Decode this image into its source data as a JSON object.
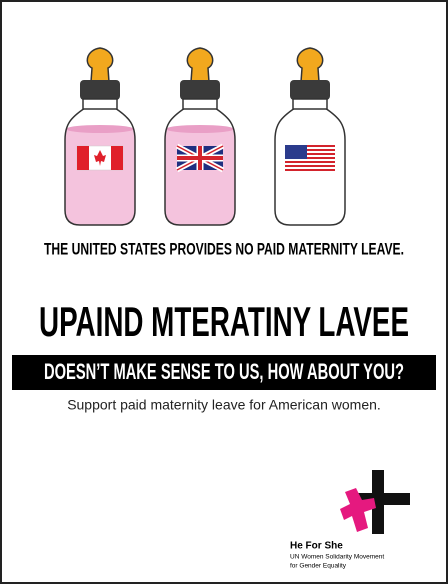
{
  "poster": {
    "statement": "THE UNITED STATES PROVIDES NO PAID MATERNITY LEAVE.",
    "headline": "UPAIND MTERATINY LAVEE",
    "banner": "DOESN’T MAKE SENSE TO US, HOW ABOUT YOU?",
    "tagline": "Support paid maternity leave for American women.",
    "logo": {
      "name": "He For She",
      "subtitle_lines": [
        "UN Women Solidarity Movement",
        "for Gender Equality"
      ]
    }
  }
}
